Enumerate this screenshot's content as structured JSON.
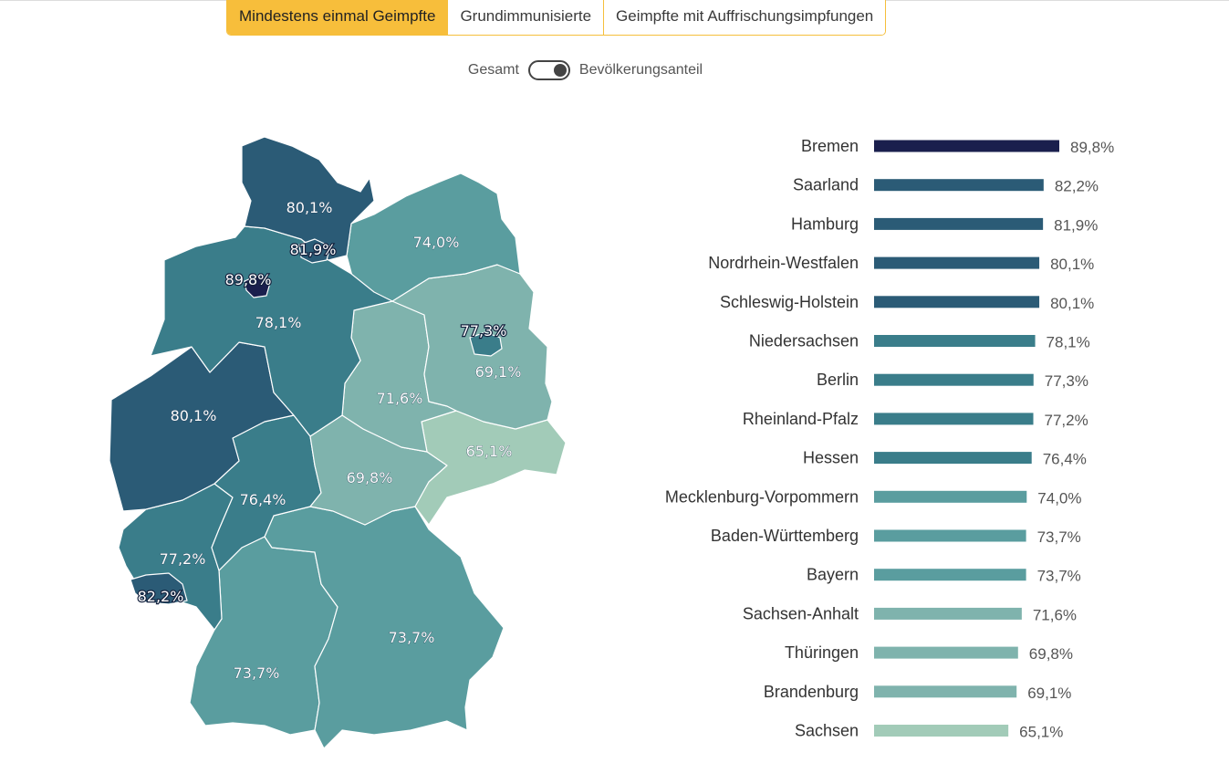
{
  "tabs": [
    "Mindestens einmal Geimpfte",
    "Grundimmunisierte",
    "Geimpfte mit Auffrischungsimpfungen"
  ],
  "toggle": {
    "left_label": "Gesamt",
    "right_label": "Bevölkerungsanteil"
  },
  "colors": {
    "accent": "#f7be3b",
    "scale": [
      "#1a1f4d",
      "#2b5b76",
      "#3a7d8a",
      "#5a9d9f",
      "#7fb3ad",
      "#a2cbb8"
    ]
  },
  "chart_data": [
    {
      "type": "choropleth-map",
      "regions": [
        {
          "name": "Schleswig-Holstein",
          "value": 80.1,
          "label": "80,1%"
        },
        {
          "name": "Hamburg",
          "value": 81.9,
          "label": "81,9%"
        },
        {
          "name": "Bremen",
          "value": 89.8,
          "label": "89,8%"
        },
        {
          "name": "Mecklenburg-Vorpommern",
          "value": 74.0,
          "label": "74,0%"
        },
        {
          "name": "Niedersachsen",
          "value": 78.1,
          "label": "78,1%"
        },
        {
          "name": "Berlin",
          "value": 77.3,
          "label": "77,3%"
        },
        {
          "name": "Brandenburg",
          "value": 69.1,
          "label": "69,1%"
        },
        {
          "name": "Sachsen-Anhalt",
          "value": 71.6,
          "label": "71,6%"
        },
        {
          "name": "Nordrhein-Westfalen",
          "value": 80.1,
          "label": "80,1%"
        },
        {
          "name": "Sachsen",
          "value": 65.1,
          "label": "65,1%"
        },
        {
          "name": "Thüringen",
          "value": 69.8,
          "label": "69,8%"
        },
        {
          "name": "Hessen",
          "value": 76.4,
          "label": "76,4%"
        },
        {
          "name": "Rheinland-Pfalz",
          "value": 77.2,
          "label": "77,2%"
        },
        {
          "name": "Saarland",
          "value": 82.2,
          "label": "82,2%"
        },
        {
          "name": "Bayern",
          "value": 73.7,
          "label": "73,7%"
        },
        {
          "name": "Baden-Württemberg",
          "value": 73.7,
          "label": "73,7%"
        }
      ]
    },
    {
      "type": "bar",
      "orientation": "horizontal",
      "categories": [
        "Bremen",
        "Saarland",
        "Hamburg",
        "Nordrhein-Westfalen",
        "Schleswig-Holstein",
        "Niedersachsen",
        "Berlin",
        "Rheinland-Pfalz",
        "Hessen",
        "Mecklenburg-Vorpommern",
        "Baden-Württemberg",
        "Bayern",
        "Sachsen-Anhalt",
        "Thüringen",
        "Brandenburg",
        "Sachsen"
      ],
      "values": [
        89.8,
        82.2,
        81.9,
        80.1,
        80.1,
        78.1,
        77.3,
        77.2,
        76.4,
        74.0,
        73.7,
        73.7,
        71.6,
        69.8,
        69.1,
        65.1
      ],
      "value_labels": [
        "89,8%",
        "82,2%",
        "81,9%",
        "80,1%",
        "80,1%",
        "78,1%",
        "77,3%",
        "77,2%",
        "76,4%",
        "74,0%",
        "73,7%",
        "73,7%",
        "71,6%",
        "69,8%",
        "69,1%",
        "65,1%"
      ],
      "xlim": [
        0,
        100
      ]
    }
  ]
}
